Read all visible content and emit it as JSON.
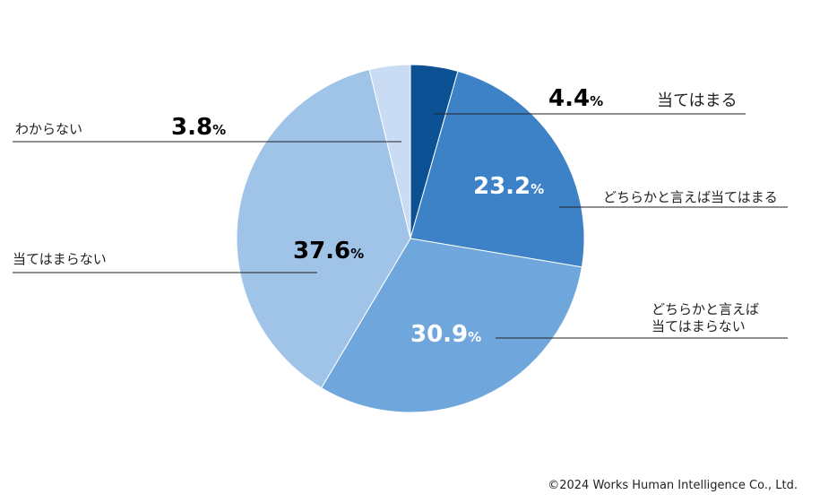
{
  "chart_data": {
    "type": "pie",
    "categories": [
      "当てはまる",
      "どちらかと言えば当てはまる",
      "どちらかと言えば当てはまらない",
      "当てはまらない",
      "わからない"
    ],
    "values": [
      4.4,
      23.2,
      30.9,
      37.6,
      3.8
    ],
    "value_labels": [
      "4.4",
      "23.2",
      "30.9",
      "37.6",
      "3.8"
    ],
    "unit": "%",
    "colors": [
      "#0d5195",
      "#3d82c6",
      "#6fa7dc",
      "#a0c4e8",
      "#c9dcf4"
    ],
    "value_label_colors": [
      "#000000",
      "#ffffff",
      "#ffffff",
      "#000000",
      "#000000"
    ],
    "label_lines": [
      [
        "当てはまる"
      ],
      [
        "どちらかと言えば当てはまる"
      ],
      [
        "どちらかと言えば",
        "当てはまらない"
      ],
      [
        "当てはまらない"
      ],
      [
        "わからない"
      ]
    ]
  },
  "footer": {
    "copyright": "©2024 Works Human Intelligence Co., Ltd."
  }
}
